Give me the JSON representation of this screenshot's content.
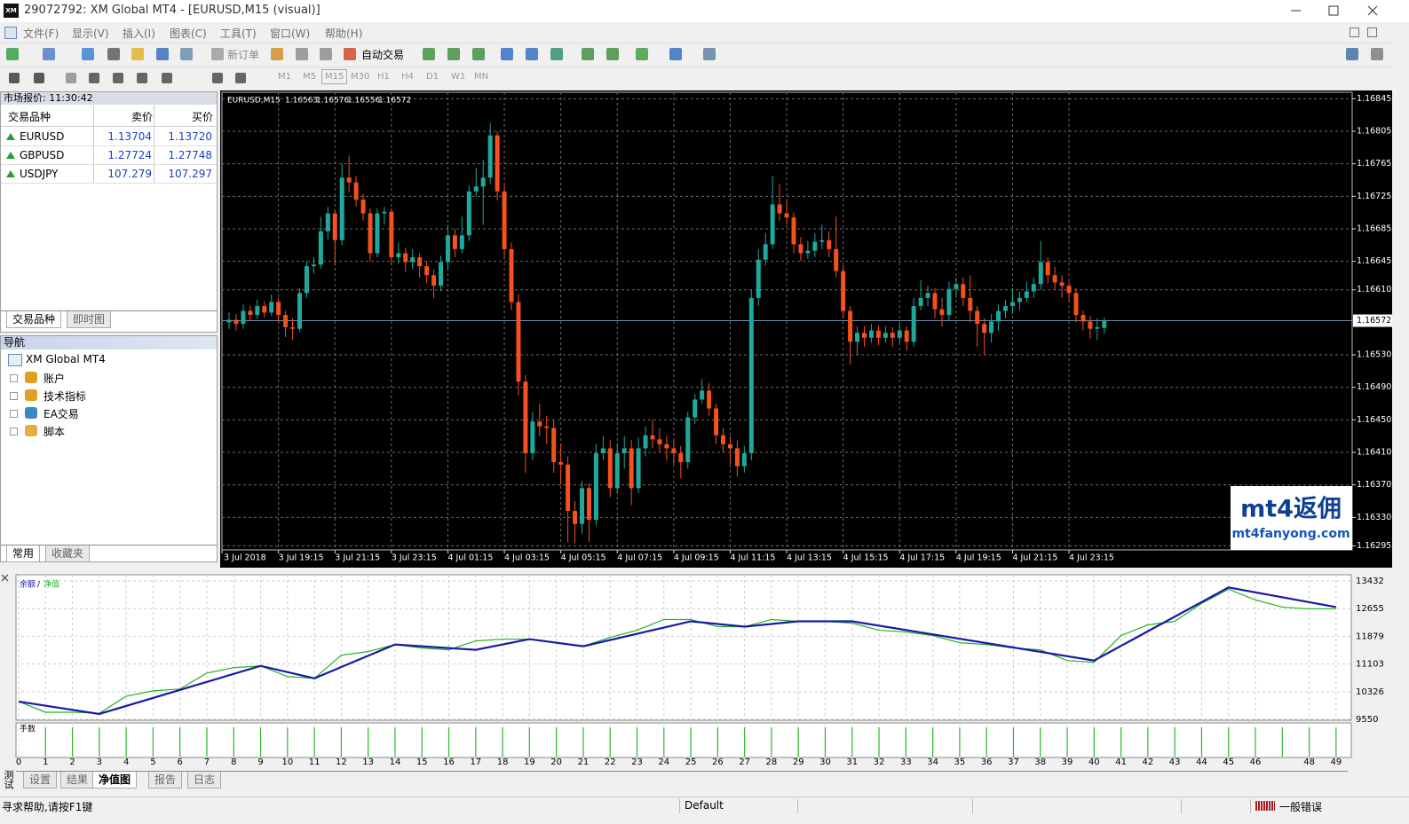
{
  "window": {
    "logo": "XM",
    "title": "29072792: XM Global MT4 - [EURUSD,M15 (visual)]"
  },
  "menu": [
    "文件(F)",
    "显示(V)",
    "插入(I)",
    "图表(C)",
    "工具(T)",
    "窗口(W)",
    "帮助(H)"
  ],
  "toolbar": {
    "new_order": "新订单",
    "auto_trading": "自动交易"
  },
  "timeframes": [
    "M1",
    "M5",
    "M15",
    "M30",
    "H1",
    "H4",
    "D1",
    "W1",
    "MN"
  ],
  "market_watch": {
    "title": "市场报价: 11:30:42",
    "columns": [
      "交易品种",
      "卖价",
      "买价"
    ],
    "rows": [
      {
        "symbol": "EURUSD",
        "bid": "1.13704",
        "ask": "1.13720"
      },
      {
        "symbol": "GBPUSD",
        "bid": "1.27724",
        "ask": "1.27748"
      },
      {
        "symbol": "USDJPY",
        "bid": "107.279",
        "ask": "107.297"
      }
    ],
    "tabs": [
      "交易品种",
      "即时图"
    ]
  },
  "navigator": {
    "title": "导航",
    "root": "XM Global MT4",
    "items": [
      "账户",
      "技术指标",
      "EA交易",
      "脚本"
    ],
    "tabs": [
      "常用",
      "收藏夹"
    ]
  },
  "watermark": {
    "brand": "mt4返佣",
    "url": "mt4fanyong.com"
  },
  "chart_data": [
    {
      "type": "candlestick",
      "header_symbol": "EURUSD,M15",
      "header_ohlc": [
        1.16563,
        1.16576,
        1.16556,
        1.16572
      ],
      "up_color": "#1fa99c",
      "down_color": "#f4511e",
      "grid": true,
      "ylim": [
        1.1629,
        1.16853
      ],
      "yticks": [
        1.16845,
        1.16805,
        1.16765,
        1.16725,
        1.16685,
        1.16645,
        {
          "value": 1.1661,
          "label": "1.16610"
        },
        {
          "value": 1.1653,
          "label": "1.16530"
        },
        {
          "value": 1.1649,
          "label": "1.16490"
        },
        {
          "value": 1.1645,
          "label": "1.16450"
        },
        {
          "value": 1.1641,
          "label": "1.16410"
        },
        {
          "value": 1.1637,
          "label": "1.16370"
        },
        {
          "value": 1.1633,
          "label": "1.16330"
        },
        1.16295
      ],
      "current_price": 1.16572,
      "time_labels": [
        "3 Jul 2018",
        "3 Jul 19:15",
        "3 Jul 21:15",
        "3 Jul 23:15",
        "4 Jul 01:15",
        "4 Jul 03:15",
        "4 Jul 05:15",
        "4 Jul 07:15",
        "4 Jul 09:15",
        "4 Jul 11:15",
        "4 Jul 13:15",
        "4 Jul 15:15",
        "4 Jul 17:15",
        "4 Jul 19:15",
        "4 Jul 21:15",
        "4 Jul 23:15"
      ],
      "ohlc": [
        [
          1.1657,
          1.16582,
          1.16562,
          1.16573
        ],
        [
          1.16573,
          1.1658,
          1.1656,
          1.16568
        ],
        [
          1.16568,
          1.16592,
          1.16562,
          1.16584
        ],
        [
          1.16584,
          1.1659,
          1.16572,
          1.16579
        ],
        [
          1.16579,
          1.16598,
          1.16574,
          1.1659
        ],
        [
          1.1659,
          1.16596,
          1.16576,
          1.16582
        ],
        [
          1.16582,
          1.16604,
          1.16578,
          1.16595
        ],
        [
          1.16595,
          1.166,
          1.1657,
          1.16579
        ],
        [
          1.16579,
          1.16584,
          1.16552,
          1.16564
        ],
        [
          1.16564,
          1.16575,
          1.16548,
          1.16562
        ],
        [
          1.16562,
          1.16612,
          1.16558,
          1.16606
        ],
        [
          1.16606,
          1.16645,
          1.166,
          1.16639
        ],
        [
          1.16639,
          1.1665,
          1.1663,
          1.16641
        ],
        [
          1.16641,
          1.167,
          1.16636,
          1.16682
        ],
        [
          1.16682,
          1.16712,
          1.16672,
          1.16704
        ],
        [
          1.16704,
          1.16708,
          1.1664,
          1.16671
        ],
        [
          1.16671,
          1.16765,
          1.16665,
          1.16748
        ],
        [
          1.16748,
          1.16775,
          1.1673,
          1.16742
        ],
        [
          1.16742,
          1.1675,
          1.16712,
          1.16721
        ],
        [
          1.16721,
          1.16728,
          1.16695,
          1.16704
        ],
        [
          1.16704,
          1.1671,
          1.16645,
          1.16655
        ],
        [
          1.16655,
          1.1671,
          1.1665,
          1.16704
        ],
        [
          1.16704,
          1.16712,
          1.1669,
          1.16706
        ],
        [
          1.16706,
          1.1671,
          1.1664,
          1.1665
        ],
        [
          1.1665,
          1.16668,
          1.16642,
          1.16655
        ],
        [
          1.16655,
          1.16662,
          1.16632,
          1.16644
        ],
        [
          1.16644,
          1.1666,
          1.16635,
          1.1665
        ],
        [
          1.1665,
          1.16655,
          1.16625,
          1.16639
        ],
        [
          1.16639,
          1.16645,
          1.16618,
          1.16628
        ],
        [
          1.16628,
          1.16635,
          1.166,
          1.16615
        ],
        [
          1.16615,
          1.16652,
          1.16608,
          1.16644
        ],
        [
          1.16644,
          1.1669,
          1.16635,
          1.16677
        ],
        [
          1.16677,
          1.16685,
          1.1665,
          1.1666
        ],
        [
          1.1666,
          1.167,
          1.16655,
          1.16677
        ],
        [
          1.16677,
          1.16738,
          1.1667,
          1.16731
        ],
        [
          1.16731,
          1.1676,
          1.16725,
          1.16737
        ],
        [
          1.16737,
          1.1677,
          1.1669,
          1.16748
        ],
        [
          1.16748,
          1.16815,
          1.1674,
          1.168
        ],
        [
          1.168,
          1.16805,
          1.1672,
          1.16731
        ],
        [
          1.16731,
          1.1674,
          1.1665,
          1.1666
        ],
        [
          1.1666,
          1.16668,
          1.16585,
          1.16595
        ],
        [
          1.16595,
          1.16605,
          1.1648,
          1.16497
        ],
        [
          1.16497,
          1.16505,
          1.16385,
          1.16409
        ],
        [
          1.16409,
          1.1646,
          1.164,
          1.16448
        ],
        [
          1.16448,
          1.1647,
          1.1643,
          1.16442
        ],
        [
          1.16442,
          1.16455,
          1.1642,
          1.1644
        ],
        [
          1.1644,
          1.1645,
          1.16385,
          1.16398
        ],
        [
          1.16398,
          1.1642,
          1.1637,
          1.16395
        ],
        [
          1.16395,
          1.16405,
          1.163,
          1.16338
        ],
        [
          1.16338,
          1.1635,
          1.16298,
          1.16322
        ],
        [
          1.16322,
          1.16375,
          1.1631,
          1.16366
        ],
        [
          1.16366,
          1.16372,
          1.163,
          1.16327
        ],
        [
          1.16327,
          1.1642,
          1.1632,
          1.16409
        ],
        [
          1.16409,
          1.1643,
          1.164,
          1.16415
        ],
        [
          1.16415,
          1.16425,
          1.16355,
          1.16366
        ],
        [
          1.16366,
          1.1642,
          1.1636,
          1.16409
        ],
        [
          1.16409,
          1.1643,
          1.1639,
          1.16415
        ],
        [
          1.16415,
          1.16425,
          1.16345,
          1.16366
        ],
        [
          1.16366,
          1.16428,
          1.1636,
          1.16415
        ],
        [
          1.16415,
          1.16442,
          1.16405,
          1.16431
        ],
        [
          1.16431,
          1.1645,
          1.16415,
          1.16426
        ],
        [
          1.16426,
          1.1644,
          1.1641,
          1.1642
        ],
        [
          1.1642,
          1.1643,
          1.164,
          1.16415
        ],
        [
          1.16415,
          1.16425,
          1.16395,
          1.16409
        ],
        [
          1.16409,
          1.16418,
          1.16378,
          1.16398
        ],
        [
          1.16398,
          1.1646,
          1.1639,
          1.16453
        ],
        [
          1.16453,
          1.16482,
          1.16445,
          1.16475
        ],
        [
          1.16475,
          1.165,
          1.1647,
          1.16486
        ],
        [
          1.16486,
          1.16495,
          1.16455,
          1.16464
        ],
        [
          1.16464,
          1.1647,
          1.1642,
          1.16431
        ],
        [
          1.16431,
          1.1644,
          1.1641,
          1.1642
        ],
        [
          1.1642,
          1.1643,
          1.16395,
          1.16415
        ],
        [
          1.16415,
          1.16425,
          1.1638,
          1.16393
        ],
        [
          1.16393,
          1.16418,
          1.16385,
          1.16409
        ],
        [
          1.16409,
          1.1661,
          1.164,
          1.166
        ],
        [
          1.166,
          1.1666,
          1.1659,
          1.16647
        ],
        [
          1.16647,
          1.1668,
          1.1664,
          1.16666
        ],
        [
          1.16666,
          1.1675,
          1.1666,
          1.16715
        ],
        [
          1.16715,
          1.1674,
          1.16695,
          1.16704
        ],
        [
          1.16704,
          1.1672,
          1.1669,
          1.16699
        ],
        [
          1.16699,
          1.16705,
          1.16655,
          1.16666
        ],
        [
          1.16666,
          1.16675,
          1.16645,
          1.16655
        ],
        [
          1.16655,
          1.1667,
          1.16648,
          1.16658
        ],
        [
          1.16658,
          1.1668,
          1.1665,
          1.16669
        ],
        [
          1.16669,
          1.1669,
          1.1666,
          1.16671
        ],
        [
          1.16671,
          1.16682,
          1.1665,
          1.1666
        ],
        [
          1.1666,
          1.167,
          1.16625,
          1.16633
        ],
        [
          1.16633,
          1.1664,
          1.16575,
          1.16584
        ],
        [
          1.16584,
          1.1659,
          1.16518,
          1.16546
        ],
        [
          1.16546,
          1.16565,
          1.1653,
          1.16557
        ],
        [
          1.16557,
          1.16565,
          1.1654,
          1.16551
        ],
        [
          1.16551,
          1.16568,
          1.16545,
          1.1656
        ],
        [
          1.1656,
          1.16566,
          1.16542,
          1.16551
        ],
        [
          1.16551,
          1.16565,
          1.16545,
          1.16557
        ],
        [
          1.16557,
          1.16564,
          1.1654,
          1.16551
        ],
        [
          1.16551,
          1.16568,
          1.16545,
          1.1656
        ],
        [
          1.1656,
          1.16565,
          1.16535,
          1.16546
        ],
        [
          1.16546,
          1.166,
          1.1654,
          1.1659
        ],
        [
          1.1659,
          1.16622,
          1.16585,
          1.166
        ],
        [
          1.166,
          1.16615,
          1.1659,
          1.16606
        ],
        [
          1.16606,
          1.16612,
          1.16575,
          1.16586
        ],
        [
          1.16586,
          1.166,
          1.16565,
          1.16579
        ],
        [
          1.16579,
          1.1662,
          1.16572,
          1.16611
        ],
        [
          1.16611,
          1.16625,
          1.166,
          1.16617
        ],
        [
          1.16617,
          1.16625,
          1.1659,
          1.166
        ],
        [
          1.166,
          1.16628,
          1.1657,
          1.16584
        ],
        [
          1.16584,
          1.1659,
          1.1654,
          1.16568
        ],
        [
          1.16568,
          1.16575,
          1.1653,
          1.16557
        ],
        [
          1.16557,
          1.1658,
          1.16545,
          1.16571
        ],
        [
          1.16571,
          1.16592,
          1.1656,
          1.16584
        ],
        [
          1.16584,
          1.16598,
          1.16575,
          1.1659
        ],
        [
          1.1659,
          1.16612,
          1.1658,
          1.16595
        ],
        [
          1.16595,
          1.16608,
          1.16585,
          1.166
        ],
        [
          1.166,
          1.1662,
          1.16595,
          1.16608
        ],
        [
          1.16608,
          1.16625,
          1.166,
          1.16617
        ],
        [
          1.16617,
          1.1667,
          1.1661,
          1.16644
        ],
        [
          1.16644,
          1.1665,
          1.16618,
          1.16628
        ],
        [
          1.16628,
          1.16638,
          1.1661,
          1.16619
        ],
        [
          1.16619,
          1.16628,
          1.166,
          1.16615
        ],
        [
          1.16615,
          1.1662,
          1.16595,
          1.16606
        ],
        [
          1.16606,
          1.16612,
          1.1657,
          1.16579
        ],
        [
          1.16579,
          1.16585,
          1.1656,
          1.16571
        ],
        [
          1.16571,
          1.16578,
          1.1655,
          1.16562
        ],
        [
          1.16562,
          1.16575,
          1.16548,
          1.16564
        ],
        [
          1.16563,
          1.16576,
          1.16556,
          1.16572
        ]
      ]
    },
    {
      "type": "line",
      "legend_separator": "/",
      "grid": true,
      "series": [
        {
          "name": "余额",
          "color": "#1a1aa8",
          "x": [
            0,
            3,
            9,
            11,
            14,
            17,
            19,
            21,
            25,
            27,
            29,
            31,
            40,
            45,
            49
          ],
          "values": [
            10050,
            9700,
            11050,
            10700,
            11650,
            11500,
            11800,
            11600,
            12300,
            12150,
            12300,
            12300,
            11200,
            13250,
            12700
          ]
        },
        {
          "name": "净值",
          "color": "#22b322",
          "x": [
            0,
            1,
            2,
            3,
            4,
            5,
            6,
            7,
            8,
            9,
            10,
            11,
            12,
            13,
            14,
            15,
            16,
            17,
            18,
            19,
            20,
            21,
            22,
            23,
            24,
            25,
            26,
            27,
            28,
            29,
            30,
            31,
            32,
            33,
            34,
            35,
            36,
            37,
            38,
            39,
            40,
            41,
            42,
            43,
            44,
            45,
            46,
            47,
            48,
            49
          ],
          "values": [
            10050,
            9750,
            9750,
            9720,
            10200,
            10350,
            10400,
            10850,
            11000,
            11050,
            10750,
            10700,
            11350,
            11450,
            11650,
            11550,
            11500,
            11750,
            11800,
            11800,
            11700,
            11600,
            11850,
            12050,
            12350,
            12350,
            12150,
            12150,
            12350,
            12300,
            12300,
            12250,
            12050,
            12000,
            11900,
            11700,
            11650,
            11550,
            11500,
            11200,
            11150,
            11900,
            12200,
            12300,
            12800,
            13200,
            12900,
            12700,
            12650,
            12650
          ]
        }
      ],
      "xlim": [
        0,
        49.5
      ],
      "xticks": [
        0,
        1,
        2,
        3,
        4,
        5,
        6,
        7,
        8,
        9,
        10,
        11,
        12,
        13,
        14,
        15,
        16,
        17,
        18,
        19,
        20,
        21,
        22,
        23,
        24,
        25,
        26,
        27,
        28,
        29,
        30,
        31,
        32,
        33,
        34,
        35,
        36,
        37,
        38,
        39,
        40,
        41,
        42,
        43,
        44,
        45,
        46,
        48,
        49
      ],
      "ylim": [
        9550,
        13432
      ],
      "yticks": [
        13432,
        12655,
        11879,
        11103,
        10326,
        9550
      ],
      "lots": {
        "label": "手数",
        "color": "#2db52d",
        "x": [
          1,
          2,
          3,
          4,
          5,
          6,
          7,
          8,
          9,
          10,
          11,
          12,
          13,
          14,
          15,
          16,
          17,
          18,
          19,
          20,
          21,
          22,
          23,
          24,
          25,
          26,
          27,
          28,
          29,
          30,
          31,
          32,
          33,
          34,
          35,
          36,
          37,
          38,
          39,
          40,
          41,
          42,
          43,
          44,
          45,
          46,
          47,
          48,
          49
        ],
        "values": [
          1,
          1,
          1,
          1,
          1,
          1,
          1,
          1,
          1,
          1,
          1,
          1,
          1,
          1,
          1,
          1,
          1,
          1,
          1,
          1,
          1,
          1,
          1,
          1,
          1,
          1,
          1,
          1,
          1,
          1,
          1,
          1,
          1,
          1,
          1,
          1,
          1,
          1,
          1,
          1,
          1,
          1,
          1,
          1,
          1,
          1,
          1,
          1,
          1
        ]
      }
    }
  ],
  "tester": {
    "side_label": "测试",
    "tabs": [
      "设置",
      "结果",
      "净值图",
      "报告",
      "日志"
    ]
  },
  "status_bar": [
    "寻求帮助,请按F1键",
    "Default",
    "一般错误"
  ]
}
